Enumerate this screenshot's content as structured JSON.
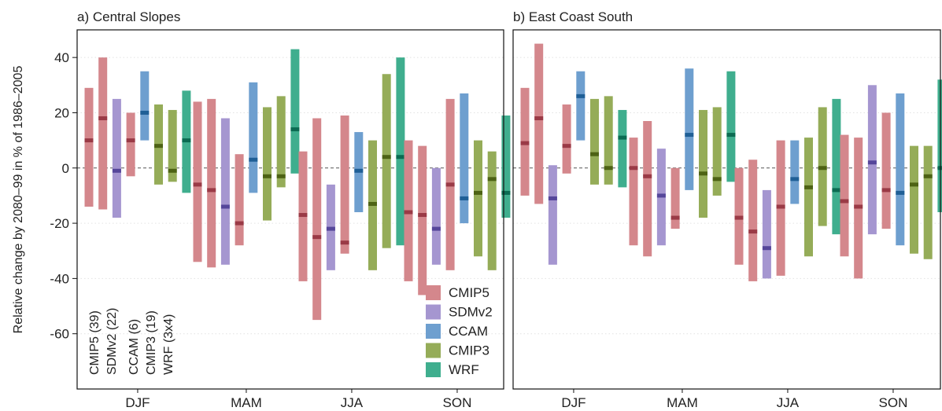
{
  "chart_data": {
    "type": "range-bar",
    "ylabel": "Relative change by 2080–99 in % of 1986–2005",
    "ylim": [
      -80,
      50
    ],
    "yticks": [
      -60,
      -40,
      -20,
      0,
      20,
      40
    ],
    "categories": [
      "DJF",
      "MAM",
      "JJA",
      "SON"
    ],
    "series_labels": [
      "CMIP5 (39)",
      "SDMv2 (22)",
      "CCAM (6)",
      "CMIP3 (19)",
      "WRF (3x4)"
    ],
    "legend": [
      {
        "name": "CMIP5",
        "color": "#d4878c"
      },
      {
        "name": "SDMv2",
        "color": "#a596d0"
      },
      {
        "name": "CCAM",
        "color": "#6e9fcf"
      },
      {
        "name": "CMIP3",
        "color": "#95ac58"
      },
      {
        "name": "WRF",
        "color": "#3fae8e"
      }
    ],
    "median_colors": {
      "CMIP5": "#9a3a46",
      "SDMv2": "#55469a",
      "CCAM": "#1f5f96",
      "CMIP3": "#4d6214",
      "WRF": "#0b6b52"
    },
    "panels": [
      {
        "title": "a) Central Slopes",
        "seasons": [
          {
            "season": "DJF",
            "bars": [
              {
                "model": "CMIP5",
                "low": -14,
                "high": 29,
                "median": 10
              },
              {
                "model": "CMIP5",
                "low": -15,
                "high": 40,
                "median": 18
              },
              {
                "model": "SDMv2",
                "low": -18,
                "high": 25,
                "median": -1
              },
              {
                "model": "CMIP5",
                "low": -3,
                "high": 20,
                "median": 10
              },
              {
                "model": "CCAM",
                "low": 10,
                "high": 35,
                "median": 20
              },
              {
                "model": "CMIP3",
                "low": -6,
                "high": 23,
                "median": 8
              },
              {
                "model": "CMIP3",
                "low": -5,
                "high": 21,
                "median": -1
              },
              {
                "model": "WRF",
                "low": -9,
                "high": 28,
                "median": 10
              }
            ]
          },
          {
            "season": "MAM",
            "bars": [
              {
                "model": "CMIP5",
                "low": -34,
                "high": 24,
                "median": -6
              },
              {
                "model": "CMIP5",
                "low": -36,
                "high": 25,
                "median": -8
              },
              {
                "model": "SDMv2",
                "low": -35,
                "high": 18,
                "median": -14
              },
              {
                "model": "CMIP5",
                "low": -28,
                "high": 5,
                "median": -20
              },
              {
                "model": "CCAM",
                "low": -9,
                "high": 31,
                "median": 3
              },
              {
                "model": "CMIP3",
                "low": -19,
                "high": 22,
                "median": -3
              },
              {
                "model": "CMIP3",
                "low": -7,
                "high": 26,
                "median": -3
              },
              {
                "model": "WRF",
                "low": -2,
                "high": 43,
                "median": 14
              }
            ]
          },
          {
            "season": "JJA",
            "bars": [
              {
                "model": "CMIP5",
                "low": -41,
                "high": 6,
                "median": -17
              },
              {
                "model": "CMIP5",
                "low": -55,
                "high": 18,
                "median": -25
              },
              {
                "model": "SDMv2",
                "low": -37,
                "high": -6,
                "median": -22
              },
              {
                "model": "CMIP5",
                "low": -31,
                "high": 19,
                "median": -27
              },
              {
                "model": "CCAM",
                "low": -16,
                "high": 13,
                "median": -1
              },
              {
                "model": "CMIP3",
                "low": -37,
                "high": 10,
                "median": -13
              },
              {
                "model": "CMIP3",
                "low": -29,
                "high": 34,
                "median": 4
              },
              {
                "model": "WRF",
                "low": -28,
                "high": 40,
                "median": 4
              }
            ]
          },
          {
            "season": "SON",
            "bars": [
              {
                "model": "CMIP5",
                "low": -41,
                "high": 10,
                "median": -16
              },
              {
                "model": "CMIP5",
                "low": -46,
                "high": 8,
                "median": -17
              },
              {
                "model": "SDMv2",
                "low": -35,
                "high": 0,
                "median": -22
              },
              {
                "model": "CMIP5",
                "low": -37,
                "high": 25,
                "median": -6
              },
              {
                "model": "CCAM",
                "low": -20,
                "high": 27,
                "median": -11
              },
              {
                "model": "CMIP3",
                "low": -32,
                "high": 10,
                "median": -9
              },
              {
                "model": "CMIP3",
                "low": -37,
                "high": 6,
                "median": -4
              },
              {
                "model": "WRF",
                "low": -18,
                "high": 19,
                "median": -9
              }
            ]
          }
        ]
      },
      {
        "title": "b) East Coast South",
        "seasons": [
          {
            "season": "DJF",
            "bars": [
              {
                "model": "CMIP5",
                "low": -10,
                "high": 29,
                "median": 9
              },
              {
                "model": "CMIP5",
                "low": -13,
                "high": 45,
                "median": 18
              },
              {
                "model": "SDMv2",
                "low": -35,
                "high": 1,
                "median": -11
              },
              {
                "model": "CMIP5",
                "low": -2,
                "high": 23,
                "median": 8
              },
              {
                "model": "CCAM",
                "low": 10,
                "high": 35,
                "median": 26
              },
              {
                "model": "CMIP3",
                "low": -6,
                "high": 25,
                "median": 5
              },
              {
                "model": "CMIP3",
                "low": -6,
                "high": 26,
                "median": 0
              },
              {
                "model": "WRF",
                "low": -7,
                "high": 21,
                "median": 11
              }
            ]
          },
          {
            "season": "MAM",
            "bars": [
              {
                "model": "CMIP5",
                "low": -28,
                "high": 11,
                "median": 0
              },
              {
                "model": "CMIP5",
                "low": -32,
                "high": 17,
                "median": -3
              },
              {
                "model": "SDMv2",
                "low": -28,
                "high": 7,
                "median": -10
              },
              {
                "model": "CMIP5",
                "low": -22,
                "high": 0,
                "median": -18
              },
              {
                "model": "CCAM",
                "low": -8,
                "high": 36,
                "median": 12
              },
              {
                "model": "CMIP3",
                "low": -18,
                "high": 21,
                "median": -2
              },
              {
                "model": "CMIP3",
                "low": -10,
                "high": 22,
                "median": -4
              },
              {
                "model": "WRF",
                "low": -5,
                "high": 35,
                "median": 12
              }
            ]
          },
          {
            "season": "JJA",
            "bars": [
              {
                "model": "CMIP5",
                "low": -35,
                "high": 0,
                "median": -18
              },
              {
                "model": "CMIP5",
                "low": -41,
                "high": 3,
                "median": -23
              },
              {
                "model": "SDMv2",
                "low": -40,
                "high": -8,
                "median": -29
              },
              {
                "model": "CMIP5",
                "low": -39,
                "high": 10,
                "median": -14
              },
              {
                "model": "CCAM",
                "low": -13,
                "high": 10,
                "median": -4
              },
              {
                "model": "CMIP3",
                "low": -32,
                "high": 11,
                "median": -7
              },
              {
                "model": "CMIP3",
                "low": -21,
                "high": 22,
                "median": 0
              },
              {
                "model": "WRF",
                "low": -24,
                "high": 25,
                "median": -8
              }
            ]
          },
          {
            "season": "SON",
            "bars": [
              {
                "model": "CMIP5",
                "low": -32,
                "high": 12,
                "median": -12
              },
              {
                "model": "CMIP5",
                "low": -40,
                "high": 11,
                "median": -14
              },
              {
                "model": "SDMv2",
                "low": -24,
                "high": 30,
                "median": 2
              },
              {
                "model": "CMIP5",
                "low": -22,
                "high": 20,
                "median": -8
              },
              {
                "model": "CCAM",
                "low": -28,
                "high": 27,
                "median": -9
              },
              {
                "model": "CMIP3",
                "low": -31,
                "high": 8,
                "median": -6
              },
              {
                "model": "CMIP3",
                "low": -33,
                "high": 8,
                "median": -3
              },
              {
                "model": "WRF",
                "low": -16,
                "high": 32,
                "median": 0
              }
            ]
          }
        ]
      }
    ]
  }
}
